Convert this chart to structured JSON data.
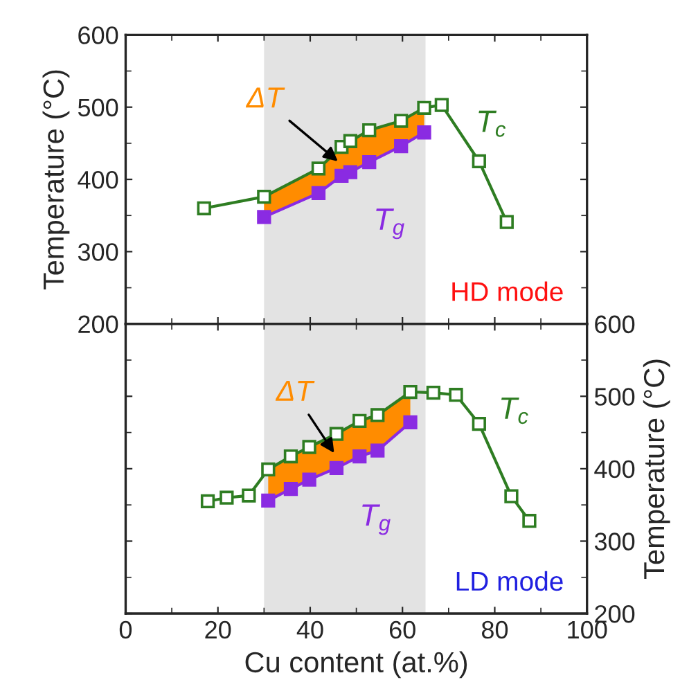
{
  "chart_data": [
    {
      "type": "line",
      "xlim": [
        0,
        100
      ],
      "xticks": [
        0,
        20,
        40,
        60,
        80,
        100
      ],
      "ylim": [
        200,
        600
      ],
      "yticks": [
        200,
        300,
        400,
        500,
        600
      ],
      "ylabel": "Temperature (°C)",
      "tick_labels": "y",
      "marker": "square",
      "bands": [
        {
          "axis": "x",
          "from": 30,
          "to": 65,
          "color": "#e3e3e3"
        }
      ],
      "annotations": [
        {
          "text": "ΔT",
          "x": 46,
          "y": 425
        },
        "HD mode"
      ],
      "series": [
        {
          "name": "T$_{c}$",
          "color": "#2e7d22",
          "x": [
            17,
            30,
            41.8,
            46.8,
            48.7,
            52.8,
            59.7,
            64.7,
            68.5,
            76.6,
            82.6
          ],
          "values": [
            360,
            376,
            415,
            445,
            453,
            468,
            481,
            499,
            503,
            425,
            341
          ],
          "lower": [
            null,
            348,
            381,
            405,
            410,
            424,
            446,
            465,
            null,
            null,
            null
          ],
          "upper": [
            null,
            376,
            415,
            445,
            453,
            468,
            481,
            499,
            null,
            null,
            null
          ]
        },
        {
          "name": "T$_{g}$",
          "color": "#8a2be2",
          "x": [
            30,
            41.8,
            46.8,
            48.7,
            52.8,
            59.7,
            64.7
          ],
          "values": [
            348,
            381,
            405,
            410,
            424,
            446,
            465
          ]
        }
      ]
    },
    {
      "type": "line",
      "xlim": [
        0,
        100
      ],
      "xticks": [
        0,
        20,
        40,
        60,
        80,
        100
      ],
      "y2lim": [
        200,
        600
      ],
      "y2ticks": [
        200,
        300,
        400,
        500,
        600
      ],
      "y2label": "Temperature (°C)",
      "xlabel": "Cu content (at.%)",
      "marker": "square",
      "bands": [
        {
          "axis": "x",
          "from": 30,
          "to": 65,
          "color": "#e3e3e3"
        }
      ],
      "annotations": [
        "ΔT",
        "LD mode"
      ],
      "series": [
        {
          "name": "T$_{c}$",
          "color": "#2e7d22",
          "axis": "y2",
          "x": [
            17.8,
            21.9,
            26.7,
            30.9,
            35.8,
            39.8,
            45.7,
            50.7,
            54.6,
            61.7,
            66.7,
            71.6,
            76.6,
            83.6,
            87.5
          ],
          "values": [
            355,
            360,
            363,
            399,
            417,
            430,
            448,
            466,
            474,
            506,
            505,
            502,
            462,
            362,
            328
          ],
          "lower": [
            null,
            null,
            null,
            356,
            372,
            385,
            401,
            417,
            425,
            464,
            null,
            null,
            null,
            null,
            null
          ],
          "upper": [
            null,
            null,
            null,
            399,
            417,
            430,
            448,
            466,
            474,
            506,
            null,
            null,
            null,
            null,
            null
          ]
        },
        {
          "name": "T$_{g}$",
          "color": "#8a2be2",
          "axis": "y2",
          "x": [
            30.9,
            35.8,
            39.8,
            45.7,
            50.7,
            54.6,
            61.7
          ],
          "values": [
            356,
            372,
            385,
            401,
            417,
            425,
            464
          ]
        }
      ]
    }
  ]
}
